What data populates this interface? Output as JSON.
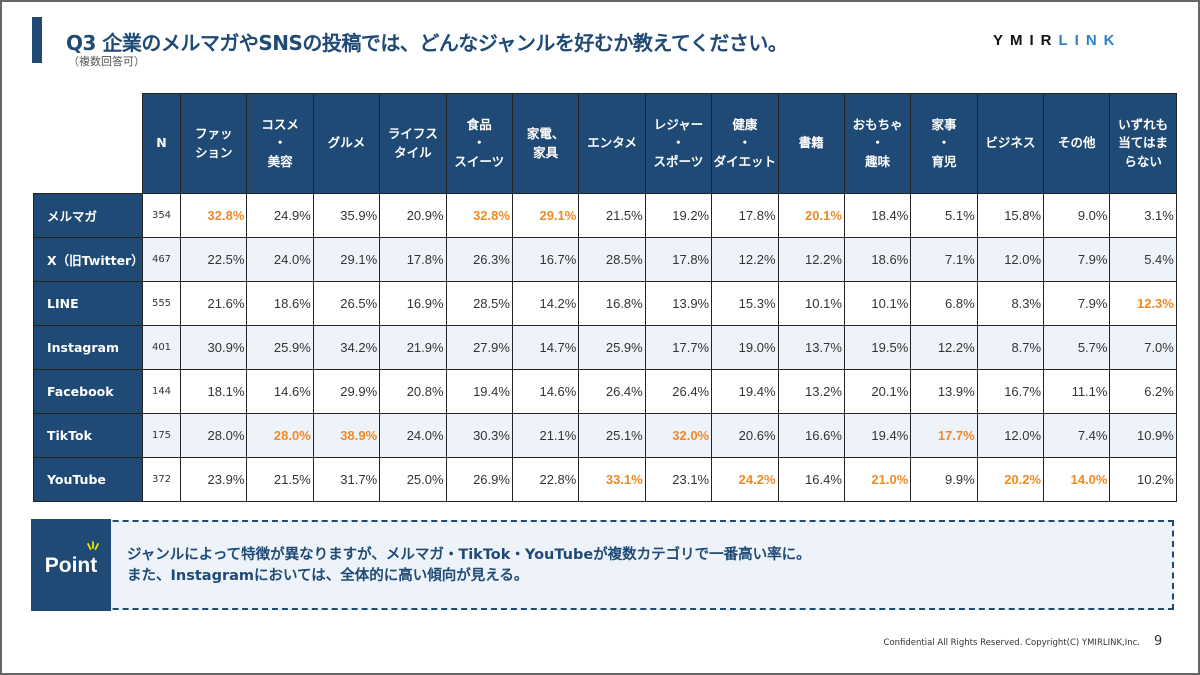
{
  "header": {
    "title": "Q3 企業のメルマガやSNSの投稿では、どんなジャンルを好むか教えてください。",
    "subtitle": "（複数回答可）",
    "logo_dark": "YMIR",
    "logo_blue": "LINK"
  },
  "colors": {
    "navy": "#1f4a75",
    "highlight": "#f08a24",
    "row_alt": "#eef3fa"
  },
  "table": {
    "columns": [
      "N",
      "ファッ\nション",
      "コスメ\n・\n美容",
      "グルメ",
      "ライフス\nタイル",
      "食品\n・\nスイーツ",
      "家電、\n家具",
      "エンタメ",
      "レジャー\n・\nスポーツ",
      "健康\n・\nダイエット",
      "書籍",
      "おもちゃ\n・\n趣味",
      "家事\n・\n育児",
      "ビジネス",
      "その他",
      "いずれも\n当てはま\nらない"
    ],
    "rows": [
      {
        "label": "メルマガ",
        "n": "354",
        "values": [
          "32.8%",
          "24.9%",
          "35.9%",
          "20.9%",
          "32.8%",
          "29.1%",
          "21.5%",
          "19.2%",
          "17.8%",
          "20.1%",
          "18.4%",
          "5.1%",
          "15.8%",
          "9.0%",
          "3.1%"
        ],
        "highlight": [
          0,
          4,
          5,
          9
        ]
      },
      {
        "label": "X（旧Twitter）",
        "n": "467",
        "values": [
          "22.5%",
          "24.0%",
          "29.1%",
          "17.8%",
          "26.3%",
          "16.7%",
          "28.5%",
          "17.8%",
          "12.2%",
          "12.2%",
          "18.6%",
          "7.1%",
          "12.0%",
          "7.9%",
          "5.4%"
        ],
        "highlight": []
      },
      {
        "label": "LINE",
        "n": "555",
        "values": [
          "21.6%",
          "18.6%",
          "26.5%",
          "16.9%",
          "28.5%",
          "14.2%",
          "16.8%",
          "13.9%",
          "15.3%",
          "10.1%",
          "10.1%",
          "6.8%",
          "8.3%",
          "7.9%",
          "12.3%"
        ],
        "highlight": [
          14
        ]
      },
      {
        "label": "Instagram",
        "n": "401",
        "values": [
          "30.9%",
          "25.9%",
          "34.2%",
          "21.9%",
          "27.9%",
          "14.7%",
          "25.9%",
          "17.7%",
          "19.0%",
          "13.7%",
          "19.5%",
          "12.2%",
          "8.7%",
          "5.7%",
          "7.0%"
        ],
        "highlight": []
      },
      {
        "label": "Facebook",
        "n": "144",
        "values": [
          "18.1%",
          "14.6%",
          "29.9%",
          "20.8%",
          "19.4%",
          "14.6%",
          "26.4%",
          "26.4%",
          "19.4%",
          "13.2%",
          "20.1%",
          "13.9%",
          "16.7%",
          "11.1%",
          "6.2%"
        ],
        "highlight": []
      },
      {
        "label": "TikTok",
        "n": "175",
        "values": [
          "28.0%",
          "28.0%",
          "38.9%",
          "24.0%",
          "30.3%",
          "21.1%",
          "25.1%",
          "32.0%",
          "20.6%",
          "16.6%",
          "19.4%",
          "17.7%",
          "12.0%",
          "7.4%",
          "10.9%"
        ],
        "highlight": [
          1,
          2,
          7,
          11
        ]
      },
      {
        "label": "YouTube",
        "n": "372",
        "values": [
          "23.9%",
          "21.5%",
          "31.7%",
          "25.0%",
          "26.9%",
          "22.8%",
          "33.1%",
          "23.1%",
          "24.2%",
          "16.4%",
          "21.0%",
          "9.9%",
          "20.2%",
          "14.0%",
          "10.2%"
        ],
        "highlight": [
          6,
          8,
          10,
          12,
          13
        ]
      }
    ]
  },
  "point": {
    "badge": "Point",
    "line1": "ジャンルによって特徴が異なりますが、メルマガ・TikTok・YouTubeが複数カテゴリで一番高い率に。",
    "line2": "また、Instagramにおいては、全体的に高い傾向が見える。"
  },
  "footer": {
    "copyright": "Confidential All Rights Reserved. Copyright(C) YMIRLINK,Inc.",
    "page": "9"
  }
}
